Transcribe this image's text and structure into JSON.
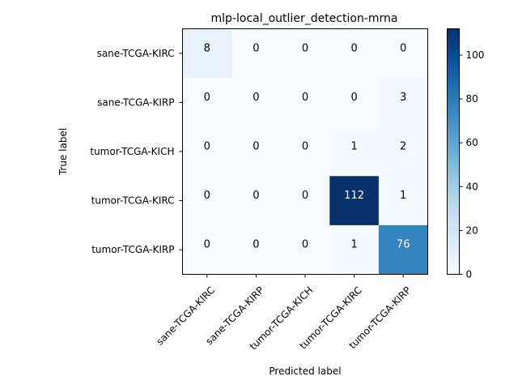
{
  "chart_data": {
    "type": "heatmap",
    "title": "mlp-local_outlier_detection-mrna",
    "xlabel": "Predicted label",
    "ylabel": "True label",
    "row_labels": [
      "sane-TCGA-KIRC",
      "sane-TCGA-KIRP",
      "tumor-TCGA-KICH",
      "tumor-TCGA-KIRC",
      "tumor-TCGA-KIRP"
    ],
    "col_labels": [
      "sane-TCGA-KIRC",
      "sane-TCGA-KIRP",
      "tumor-TCGA-KICH",
      "tumor-TCGA-KIRC",
      "tumor-TCGA-KIRP"
    ],
    "matrix": [
      [
        8,
        0,
        0,
        0,
        0
      ],
      [
        0,
        0,
        0,
        0,
        3
      ],
      [
        0,
        0,
        0,
        1,
        2
      ],
      [
        0,
        0,
        0,
        112,
        1
      ],
      [
        0,
        0,
        0,
        1,
        76
      ]
    ],
    "colorbar": {
      "min": 0,
      "max": 112,
      "ticks": [
        0,
        20,
        40,
        60,
        80,
        100
      ]
    },
    "colormap": "Blues",
    "grid": false
  }
}
